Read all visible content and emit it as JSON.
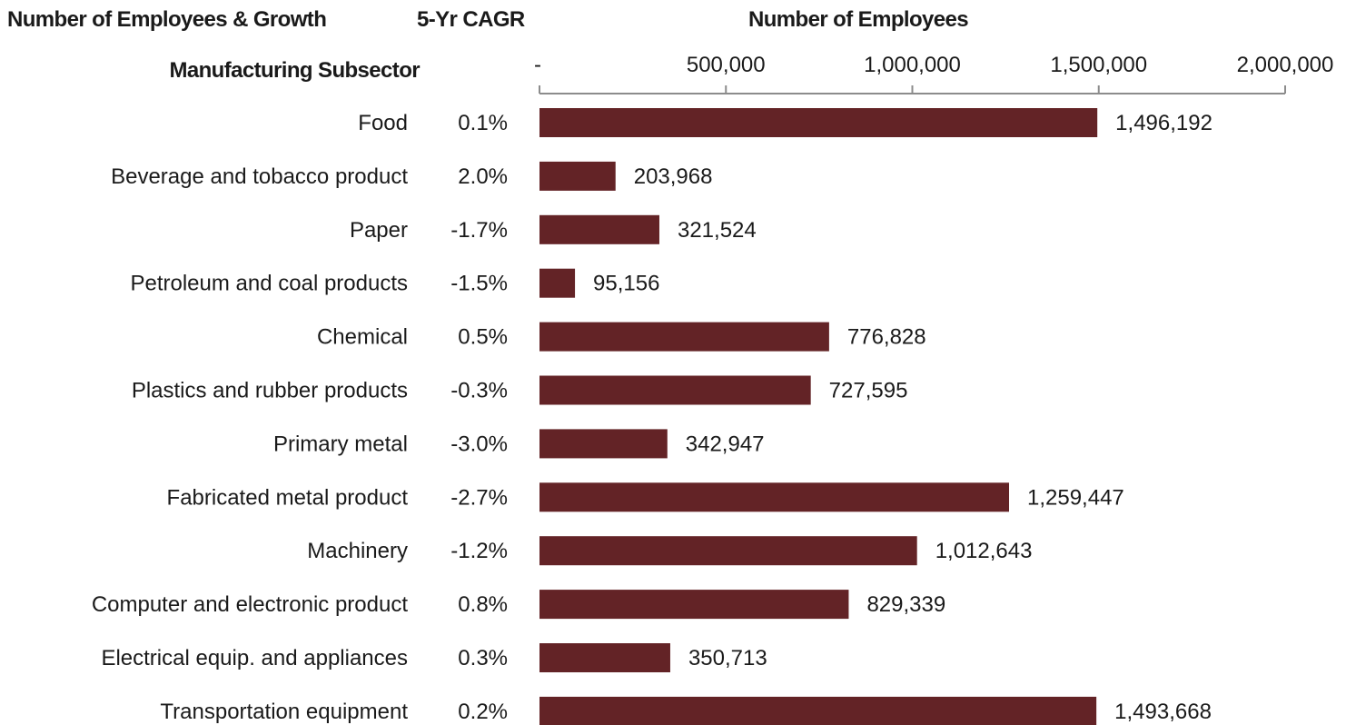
{
  "headers": {
    "left_title": "Number of Employees & Growth",
    "cagr_title": "5-Yr CAGR",
    "axis_title": "Number of Employees",
    "category_title": "Manufacturing Subsector"
  },
  "colors": {
    "bar": "#632326",
    "axis": "#8c8c8c"
  },
  "chart_data": {
    "type": "bar",
    "orientation": "horizontal",
    "title": "Number of Employees & Growth",
    "xlabel": "Number of Employees",
    "ylabel": "Manufacturing Subsector",
    "xlim": [
      0,
      2000000
    ],
    "axis_position": "top",
    "grid": false,
    "ticks": [
      {
        "value": 0,
        "label": "-"
      },
      {
        "value": 500000,
        "label": "500,000"
      },
      {
        "value": 1000000,
        "label": "1,000,000"
      },
      {
        "value": 1500000,
        "label": "1,500,000"
      },
      {
        "value": 2000000,
        "label": "2,000,000"
      }
    ],
    "categories": [
      "Food",
      "Beverage and tobacco product",
      "Paper",
      "Petroleum and coal products",
      "Chemical",
      "Plastics and rubber products",
      "Primary metal",
      "Fabricated metal product",
      "Machinery",
      "Computer and electronic product",
      "Electrical equip. and appliances",
      "Transportation equipment"
    ],
    "values": [
      1496192,
      203968,
      321524,
      95156,
      776828,
      727595,
      342947,
      1259447,
      1012643,
      829339,
      350713,
      1493668
    ],
    "value_labels": [
      "1,496,192",
      "203,968",
      "321,524",
      "95,156",
      "776,828",
      "727,595",
      "342,947",
      "1,259,447",
      "1,012,643",
      "829,339",
      "350,713",
      "1,493,668"
    ],
    "cagr": [
      "0.1%",
      "2.0%",
      "-1.7%",
      "-1.5%",
      "0.5%",
      "-0.3%",
      "-3.0%",
      "-2.7%",
      "-1.2%",
      "0.8%",
      "0.3%",
      "0.2%"
    ]
  }
}
